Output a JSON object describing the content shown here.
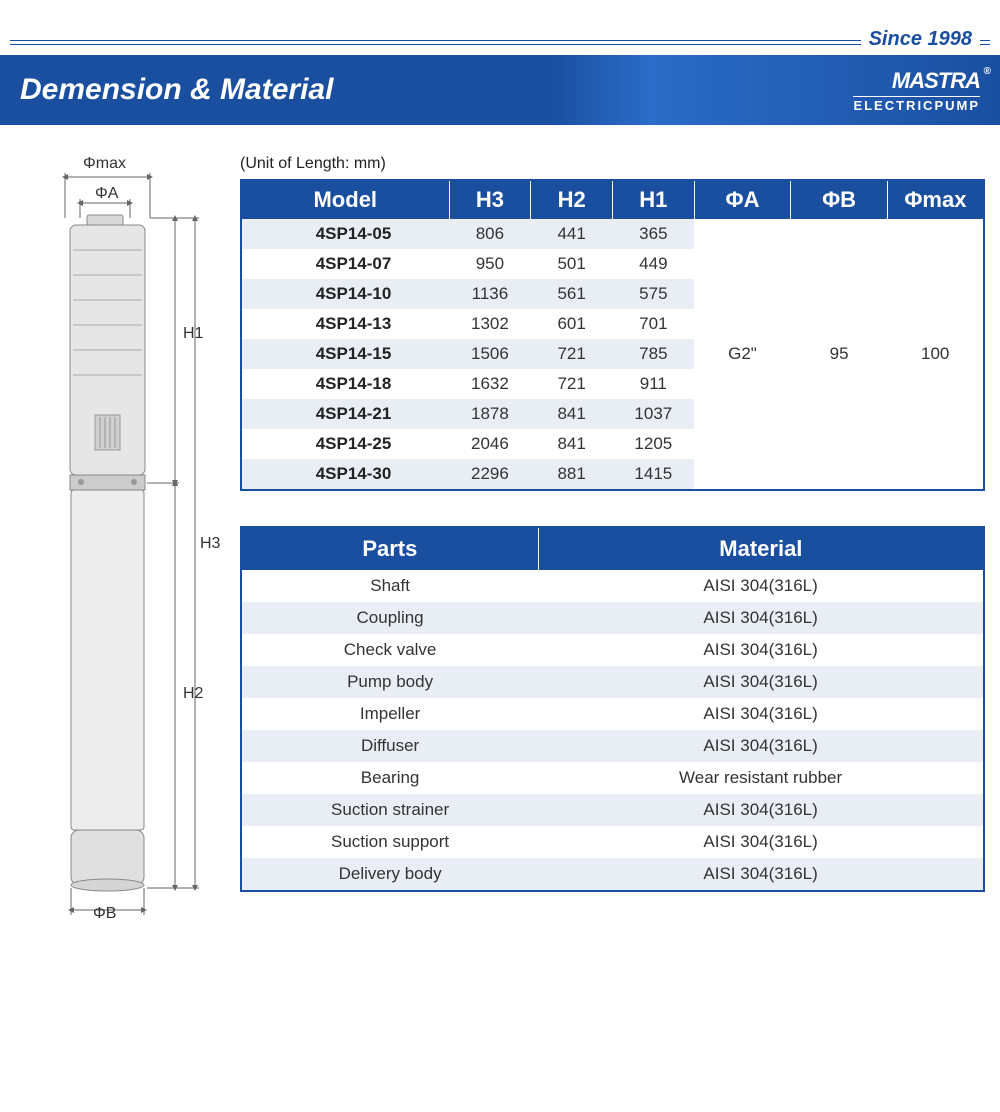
{
  "header": {
    "since": "Since 1998",
    "title": "Demension & Material",
    "brand_logo": "MASTRA",
    "brand_sub": "ELECTRICPUMP"
  },
  "unit_label": "(Unit of Length: mm)",
  "diagram_labels": {
    "phimax": "Φmax",
    "phia": "ΦA",
    "phib": "ΦB",
    "h1": "H1",
    "h2": "H2",
    "h3": "H3"
  },
  "dim_table": {
    "columns": [
      "Model",
      "H3",
      "H2",
      "H1",
      "ΦA",
      "ΦB",
      "Φmax"
    ],
    "col_widths": [
      "28%",
      "11%",
      "11%",
      "11%",
      "13%",
      "13%",
      "13%"
    ],
    "rows": [
      [
        "4SP14-05",
        "806",
        "441",
        "365"
      ],
      [
        "4SP14-07",
        "950",
        "501",
        "449"
      ],
      [
        "4SP14-10",
        "1136",
        "561",
        "575"
      ],
      [
        "4SP14-13",
        "1302",
        "601",
        "701"
      ],
      [
        "4SP14-15",
        "1506",
        "721",
        "785"
      ],
      [
        "4SP14-18",
        "1632",
        "721",
        "911"
      ],
      [
        "4SP14-21",
        "1878",
        "841",
        "1037"
      ],
      [
        "4SP14-25",
        "2046",
        "841",
        "1205"
      ],
      [
        "4SP14-30",
        "2296",
        "881",
        "1415"
      ]
    ],
    "merged": {
      "phia": "G2\"",
      "phib": "95",
      "phimax": "100"
    }
  },
  "mat_table": {
    "columns": [
      "Parts",
      "Material"
    ],
    "col_widths": [
      "40%",
      "60%"
    ],
    "rows": [
      [
        "Shaft",
        "AISI 304(316L)"
      ],
      [
        "Coupling",
        "AISI 304(316L)"
      ],
      [
        "Check valve",
        "AISI 304(316L)"
      ],
      [
        "Pump body",
        "AISI 304(316L)"
      ],
      [
        "Impeller",
        "AISI 304(316L)"
      ],
      [
        "Diffuser",
        "AISI 304(316L)"
      ],
      [
        "Bearing",
        "Wear resistant rubber"
      ],
      [
        "Suction strainer",
        "AISI 304(316L)"
      ],
      [
        "Suction support",
        "AISI 304(316L)"
      ],
      [
        "Delivery body",
        "AISI 304(316L)"
      ]
    ]
  },
  "colors": {
    "brand_blue": "#1a4fa0",
    "row_stripe": "#e8eef4",
    "text": "#333333"
  }
}
